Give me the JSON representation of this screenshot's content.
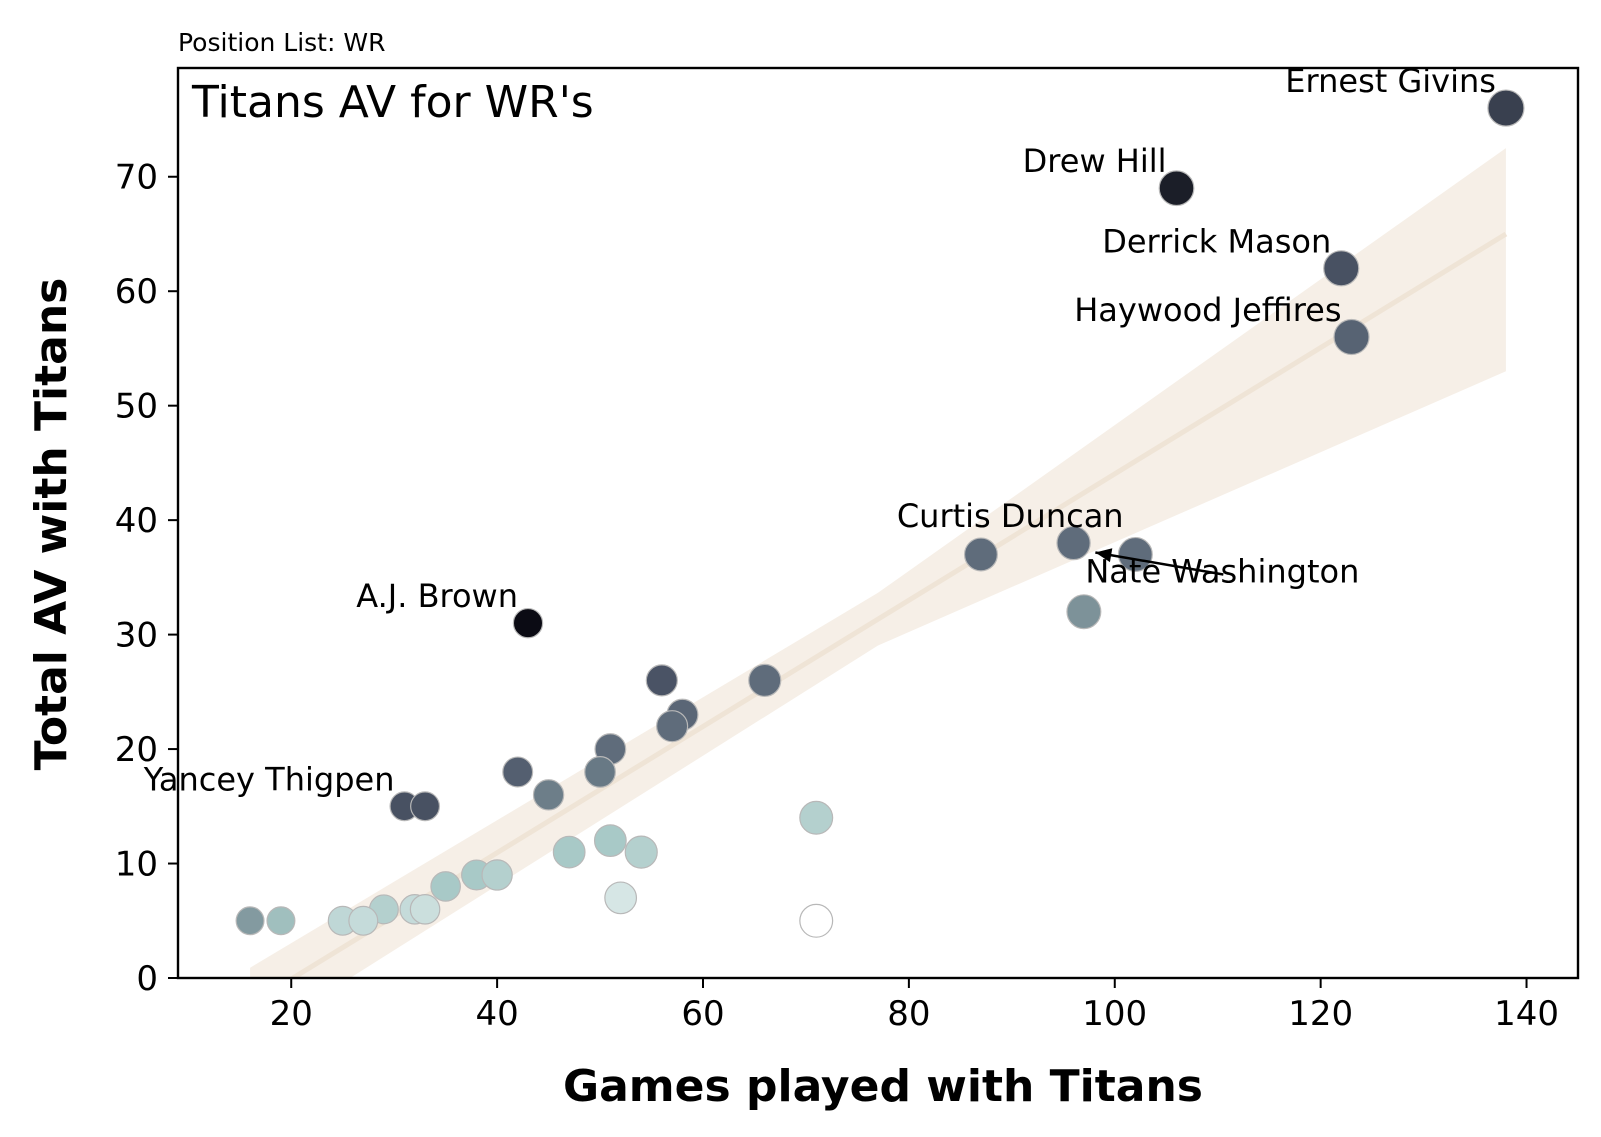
{
  "chart_data": {
    "type": "scatter",
    "subtitle": "Position List: WR",
    "title": "Titans AV for WR's",
    "xlabel": "Games played with Titans",
    "ylabel": "Total AV with Titans",
    "xlim": [
      9,
      145
    ],
    "ylim": [
      0,
      79.5
    ],
    "xticks": [
      "20",
      "40",
      "60",
      "80",
      "100",
      "120",
      "140"
    ],
    "yticks": [
      "0",
      "10",
      "20",
      "30",
      "40",
      "50",
      "60",
      "70"
    ],
    "grid": false,
    "legend": "none",
    "points": [
      {
        "x": 138,
        "y": 76,
        "shade": 0.82,
        "size": 1.0
      },
      {
        "x": 106,
        "y": 69,
        "shade": 0.95,
        "size": 0.92
      },
      {
        "x": 122,
        "y": 62,
        "shade": 0.72,
        "size": 0.95
      },
      {
        "x": 123,
        "y": 56,
        "shade": 0.6,
        "size": 0.95
      },
      {
        "x": 87,
        "y": 37,
        "shade": 0.55,
        "size": 0.82
      },
      {
        "x": 96,
        "y": 38,
        "shade": 0.55,
        "size": 0.85
      },
      {
        "x": 102,
        "y": 37,
        "shade": 0.55,
        "size": 0.88
      },
      {
        "x": 97,
        "y": 32,
        "shade": 0.42,
        "size": 0.88
      },
      {
        "x": 43,
        "y": 31,
        "shade": 1.0,
        "size": 0.62
      },
      {
        "x": 56,
        "y": 26,
        "shade": 0.7,
        "size": 0.72
      },
      {
        "x": 66,
        "y": 26,
        "shade": 0.55,
        "size": 0.78
      },
      {
        "x": 58,
        "y": 23,
        "shade": 0.58,
        "size": 0.72
      },
      {
        "x": 57,
        "y": 22,
        "shade": 0.55,
        "size": 0.72
      },
      {
        "x": 51,
        "y": 20,
        "shade": 0.55,
        "size": 0.7
      },
      {
        "x": 50,
        "y": 18,
        "shade": 0.5,
        "size": 0.7
      },
      {
        "x": 42,
        "y": 18,
        "shade": 0.62,
        "size": 0.66
      },
      {
        "x": 45,
        "y": 16,
        "shade": 0.48,
        "size": 0.68
      },
      {
        "x": 31,
        "y": 15,
        "shade": 0.72,
        "size": 0.6
      },
      {
        "x": 33,
        "y": 15,
        "shade": 0.72,
        "size": 0.6
      },
      {
        "x": 71,
        "y": 14,
        "shade": 0.26,
        "size": 0.82
      },
      {
        "x": 51,
        "y": 12,
        "shade": 0.3,
        "size": 0.75
      },
      {
        "x": 47,
        "y": 11,
        "shade": 0.3,
        "size": 0.75
      },
      {
        "x": 54,
        "y": 11,
        "shade": 0.26,
        "size": 0.78
      },
      {
        "x": 38,
        "y": 9,
        "shade": 0.3,
        "size": 0.66
      },
      {
        "x": 40,
        "y": 9,
        "shade": 0.26,
        "size": 0.68
      },
      {
        "x": 35,
        "y": 8,
        "shade": 0.3,
        "size": 0.63
      },
      {
        "x": 52,
        "y": 7,
        "shade": 0.14,
        "size": 0.75
      },
      {
        "x": 29,
        "y": 6,
        "shade": 0.26,
        "size": 0.6
      },
      {
        "x": 32,
        "y": 6,
        "shade": 0.2,
        "size": 0.63
      },
      {
        "x": 33,
        "y": 6,
        "shade": 0.18,
        "size": 0.63
      },
      {
        "x": 16,
        "y": 5,
        "shade": 0.4,
        "size": 0.55
      },
      {
        "x": 19,
        "y": 5,
        "shade": 0.32,
        "size": 0.55
      },
      {
        "x": 25,
        "y": 5,
        "shade": 0.22,
        "size": 0.6
      },
      {
        "x": 27,
        "y": 5,
        "shade": 0.2,
        "size": 0.6
      },
      {
        "x": 71,
        "y": 5,
        "shade": 0.0,
        "size": 0.82
      }
    ],
    "regression": {
      "x": [
        16,
        138
      ],
      "y": [
        -2.3,
        65
      ],
      "band_lower": [
        -3.2,
        53
      ],
      "band_upper": [
        3.2,
        72.5
      ]
    },
    "annotations": [
      {
        "text": "Ernest Givins",
        "x": 138,
        "y": 76,
        "anchor": "end"
      },
      {
        "text": "Drew Hill",
        "x": 106,
        "y": 69,
        "anchor": "end"
      },
      {
        "text": "Derrick Mason",
        "x": 122,
        "y": 62,
        "anchor": "end"
      },
      {
        "text": "Haywood Jeffires",
        "x": 123,
        "y": 56,
        "anchor": "end"
      },
      {
        "text": "Curtis Duncan",
        "x": 96,
        "y": 38,
        "anchor": "end"
      },
      {
        "text": "Nate Washington",
        "x": 102,
        "y": 37,
        "anchor": "start",
        "arrow": true
      },
      {
        "text": "A.J. Brown",
        "x": 43,
        "y": 31,
        "anchor": "end"
      },
      {
        "text": "Yancey Thigpen",
        "x": 31,
        "y": 15,
        "anchor": "end"
      }
    ],
    "colors": {
      "regression_line": "#efe4d6",
      "band": "#f6efe7",
      "point_edge": "#b8b8b8",
      "cmap_low": "#ffffff",
      "cmap_mid": "#a8c9c7",
      "cmap_high": "#0b0b14"
    }
  }
}
